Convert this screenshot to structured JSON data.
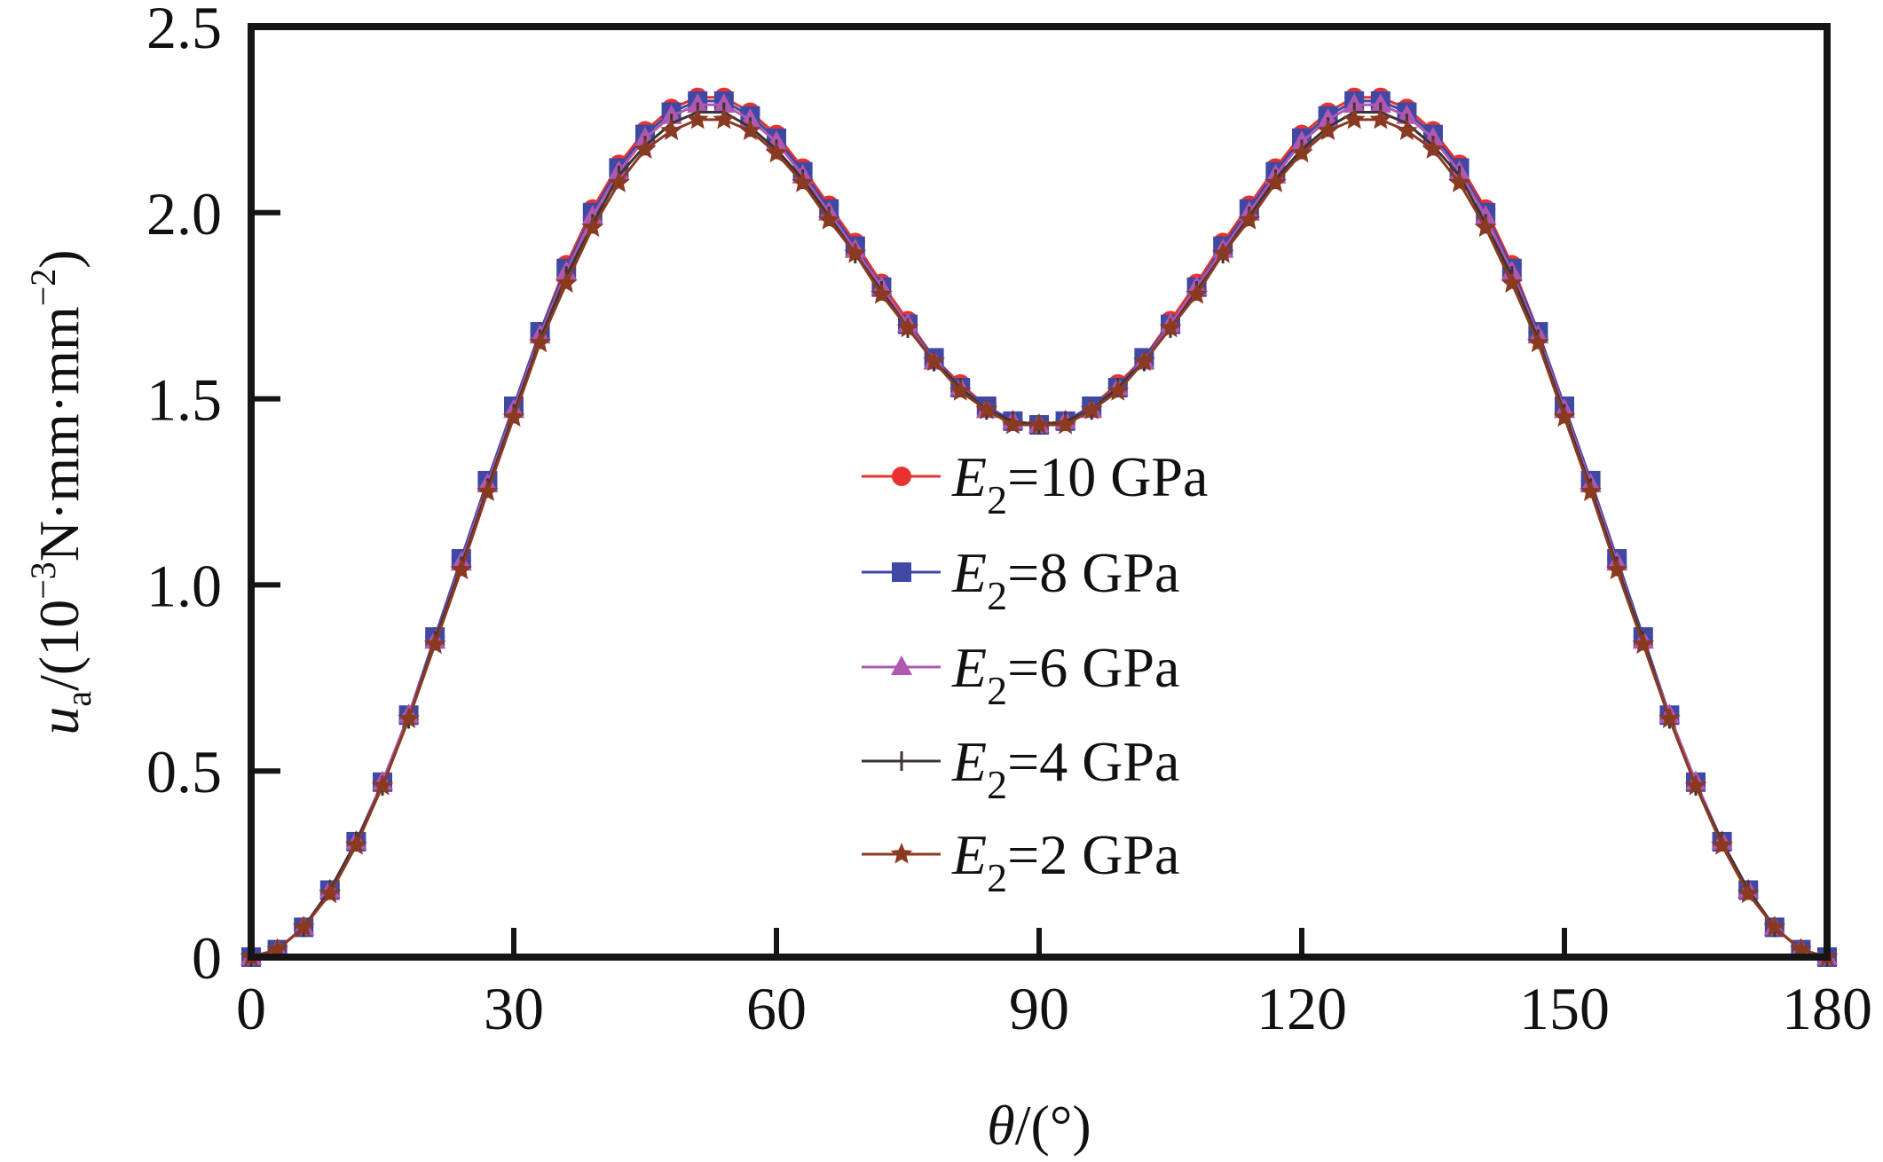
{
  "chart_data": {
    "type": "line",
    "title": "",
    "xlabel": "θ/(°)",
    "xlabel_parts": {
      "symbol": "θ",
      "rest": "/(°)"
    },
    "ylabel": "u_a/(10^-3 N·mm·mm^-2)",
    "ylabel_parts": {
      "symbol": "u",
      "sub": "a",
      "pre_exp": "/(10",
      "exp1": "−3",
      "mid": "N·mm·mm",
      "exp2": "−2",
      "close": ")"
    },
    "xlim": [
      0,
      180
    ],
    "ylim": [
      0,
      2.5
    ],
    "xticks": [
      0,
      30,
      60,
      90,
      120,
      150,
      180
    ],
    "xtick_labels": [
      "0",
      "30",
      "60",
      "90",
      "120",
      "150",
      "180"
    ],
    "yticks": [
      0,
      0.5,
      1.0,
      1.5,
      2.0,
      2.5
    ],
    "ytick_labels": [
      "0",
      "0.5",
      "1.0",
      "1.5",
      "2.0",
      "2.5"
    ],
    "grid": false,
    "legend_position": "center",
    "x": [
      0,
      3,
      6,
      9,
      12,
      15,
      18,
      21,
      24,
      27,
      30,
      33,
      36,
      39,
      42,
      45,
      48,
      51,
      54,
      57,
      60,
      63,
      66,
      69,
      72,
      75,
      78,
      81,
      84,
      87,
      90,
      93,
      96,
      99,
      102,
      105,
      108,
      111,
      114,
      117,
      120,
      123,
      126,
      129,
      132,
      135,
      138,
      141,
      144,
      147,
      150,
      153,
      156,
      159,
      162,
      165,
      168,
      171,
      174,
      177,
      180
    ],
    "series": [
      {
        "name": "E2=10 GPa",
        "label_symbol": "E",
        "label_sub": "2",
        "label_rest": "=10 GPa",
        "color": "#e8322e",
        "marker": "circle",
        "values": [
          0,
          0.02,
          0.08,
          0.18,
          0.31,
          0.47,
          0.65,
          0.86,
          1.07,
          1.28,
          1.48,
          1.68,
          1.86,
          2.01,
          2.13,
          2.22,
          2.28,
          2.31,
          2.31,
          2.27,
          2.21,
          2.12,
          2.02,
          1.92,
          1.81,
          1.71,
          1.61,
          1.54,
          1.48,
          1.44,
          1.43,
          1.44,
          1.48,
          1.54,
          1.61,
          1.71,
          1.81,
          1.92,
          2.02,
          2.12,
          2.21,
          2.27,
          2.31,
          2.31,
          2.28,
          2.22,
          2.13,
          2.01,
          1.86,
          1.68,
          1.48,
          1.28,
          1.07,
          0.86,
          0.65,
          0.47,
          0.31,
          0.18,
          0.08,
          0.02,
          0
        ]
      },
      {
        "name": "E2=8 GPa",
        "label_symbol": "E",
        "label_sub": "2",
        "label_rest": "=8 GPa",
        "color": "#3f48a3",
        "marker": "square",
        "values": [
          0,
          0.02,
          0.08,
          0.18,
          0.31,
          0.47,
          0.65,
          0.86,
          1.07,
          1.28,
          1.48,
          1.68,
          1.85,
          2.0,
          2.12,
          2.21,
          2.27,
          2.3,
          2.3,
          2.26,
          2.2,
          2.11,
          2.01,
          1.91,
          1.8,
          1.7,
          1.61,
          1.53,
          1.48,
          1.44,
          1.43,
          1.44,
          1.48,
          1.53,
          1.61,
          1.7,
          1.8,
          1.91,
          2.01,
          2.11,
          2.2,
          2.26,
          2.3,
          2.3,
          2.27,
          2.21,
          2.12,
          2.0,
          1.85,
          1.68,
          1.48,
          1.28,
          1.07,
          0.86,
          0.65,
          0.47,
          0.31,
          0.18,
          0.08,
          0.02,
          0
        ]
      },
      {
        "name": "E2=6 GPa",
        "label_symbol": "E",
        "label_sub": "2",
        "label_rest": "=6 GPa",
        "color": "#b057b0",
        "marker": "triangle",
        "values": [
          0,
          0.02,
          0.08,
          0.18,
          0.31,
          0.47,
          0.65,
          0.85,
          1.06,
          1.27,
          1.47,
          1.67,
          1.84,
          1.99,
          2.11,
          2.2,
          2.26,
          2.29,
          2.29,
          2.25,
          2.19,
          2.1,
          2.0,
          1.9,
          1.8,
          1.7,
          1.6,
          1.53,
          1.47,
          1.44,
          1.43,
          1.44,
          1.47,
          1.53,
          1.6,
          1.7,
          1.8,
          1.9,
          2.0,
          2.1,
          2.19,
          2.25,
          2.29,
          2.29,
          2.26,
          2.2,
          2.11,
          1.99,
          1.84,
          1.67,
          1.47,
          1.27,
          1.06,
          0.85,
          0.65,
          0.47,
          0.31,
          0.18,
          0.08,
          0.02,
          0
        ]
      },
      {
        "name": "E2=4 GPa",
        "label_symbol": "E",
        "label_sub": "2",
        "label_rest": "=4 GPa",
        "color": "#3b3432",
        "marker": "plus",
        "values": [
          0,
          0.02,
          0.08,
          0.18,
          0.31,
          0.46,
          0.64,
          0.85,
          1.05,
          1.26,
          1.46,
          1.66,
          1.83,
          1.97,
          2.1,
          2.18,
          2.24,
          2.27,
          2.27,
          2.23,
          2.17,
          2.09,
          1.99,
          1.89,
          1.79,
          1.69,
          1.6,
          1.53,
          1.47,
          1.44,
          1.43,
          1.44,
          1.47,
          1.53,
          1.6,
          1.69,
          1.79,
          1.89,
          1.99,
          2.09,
          2.17,
          2.23,
          2.27,
          2.27,
          2.24,
          2.18,
          2.1,
          1.97,
          1.83,
          1.66,
          1.46,
          1.26,
          1.05,
          0.85,
          0.64,
          0.46,
          0.31,
          0.18,
          0.08,
          0.02,
          0
        ]
      },
      {
        "name": "E2=2 GPa",
        "label_symbol": "E",
        "label_sub": "2",
        "label_rest": "=2 GPa",
        "color": "#8b3a22",
        "marker": "star",
        "values": [
          0,
          0.02,
          0.08,
          0.17,
          0.3,
          0.46,
          0.64,
          0.84,
          1.04,
          1.25,
          1.45,
          1.65,
          1.81,
          1.96,
          2.08,
          2.17,
          2.22,
          2.25,
          2.25,
          2.22,
          2.16,
          2.08,
          1.98,
          1.89,
          1.78,
          1.69,
          1.6,
          1.52,
          1.47,
          1.43,
          1.43,
          1.43,
          1.47,
          1.52,
          1.6,
          1.69,
          1.78,
          1.89,
          1.98,
          2.08,
          2.16,
          2.22,
          2.25,
          2.25,
          2.22,
          2.17,
          2.08,
          1.96,
          1.81,
          1.65,
          1.45,
          1.25,
          1.04,
          0.84,
          0.64,
          0.46,
          0.3,
          0.17,
          0.08,
          0.02,
          0
        ]
      }
    ]
  }
}
